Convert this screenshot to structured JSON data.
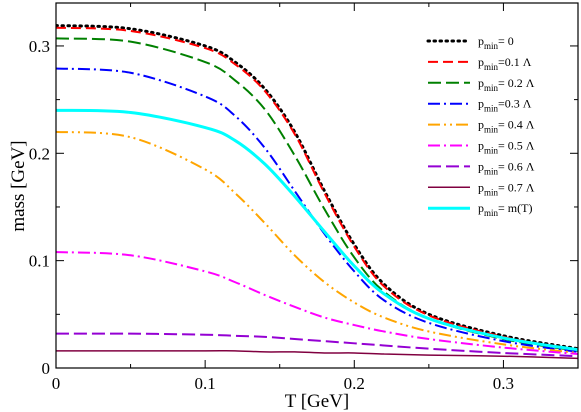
{
  "chart_data": {
    "type": "line",
    "xlabel": "T [GeV]",
    "ylabel": "mass [GeV]",
    "xlim": [
      0,
      0.35
    ],
    "ylim": [
      0,
      0.34
    ],
    "x_ticks": [
      "0",
      "0.1",
      "0.2",
      "0.3"
    ],
    "x_tick_values": [
      0,
      0.1,
      0.2,
      0.3
    ],
    "y_ticks": [
      "0",
      "0.1",
      "0.2",
      "0.3"
    ],
    "y_tick_values": [
      0,
      0.1,
      0.2,
      0.3
    ],
    "grid": false,
    "legend_position": "top-right",
    "x": [
      0.0,
      0.05,
      0.1,
      0.12,
      0.14,
      0.16,
      0.18,
      0.2,
      0.22,
      0.25,
      0.3,
      0.35
    ],
    "series": [
      {
        "name": "p_min = 0",
        "name_base": "p",
        "name_sub": "min",
        "name_rest": "= 0",
        "color": "#000000",
        "dash": "1.5,4.5",
        "width": 3,
        "values": [
          0.319,
          0.316,
          0.3,
          0.285,
          0.26,
          0.22,
          0.165,
          0.115,
          0.078,
          0.05,
          0.03,
          0.018
        ]
      },
      {
        "name": "p_min =0.1 Λ",
        "name_base": "p",
        "name_sub": "min",
        "name_rest": "=0.1 Λ",
        "color": "#ff0000",
        "dash": "10,5",
        "width": 2,
        "values": [
          0.317,
          0.314,
          0.298,
          0.283,
          0.258,
          0.218,
          0.163,
          0.113,
          0.076,
          0.049,
          0.029,
          0.017
        ]
      },
      {
        "name": "p_min = 0.2 Λ",
        "name_base": "p",
        "name_sub": "min",
        "name_rest": "= 0.2 Λ",
        "color": "#008000",
        "dash": "13,5",
        "width": 2,
        "values": [
          0.307,
          0.304,
          0.285,
          0.268,
          0.241,
          0.198,
          0.148,
          0.103,
          0.071,
          0.046,
          0.027,
          0.016
        ]
      },
      {
        "name": "p_min =0.3 Λ",
        "name_base": "p",
        "name_sub": "min",
        "name_rest": "=0.3 Λ",
        "color": "#0000ff",
        "dash": "12,4,2,4",
        "width": 2,
        "values": [
          0.279,
          0.275,
          0.253,
          0.235,
          0.205,
          0.165,
          0.125,
          0.09,
          0.063,
          0.042,
          0.025,
          0.015
        ]
      },
      {
        "name": "p_min = 0.4 Λ",
        "name_base": "p",
        "name_sub": "min",
        "name_rest": "= 0.4 Λ",
        "color": "#ffa500",
        "dash": "12,4,2,4,2,4",
        "width": 2,
        "values": [
          0.22,
          0.215,
          0.185,
          0.163,
          0.135,
          0.105,
          0.08,
          0.061,
          0.047,
          0.034,
          0.022,
          0.014
        ]
      },
      {
        "name": "p_min = 0.5 Λ",
        "name_base": "p",
        "name_sub": "min",
        "name_rest": "= 0.5 Λ",
        "color": "#ff00ff",
        "dash": "12,4,2,4",
        "width": 2,
        "values": [
          0.108,
          0.105,
          0.09,
          0.08,
          0.068,
          0.057,
          0.047,
          0.04,
          0.034,
          0.027,
          0.019,
          0.013
        ]
      },
      {
        "name": "p_min = 0.6 Λ",
        "name_base": "p",
        "name_sub": "min",
        "name_rest": "= 0.6 Λ",
        "color": "#9400d3",
        "dash": "13,5",
        "width": 2,
        "values": [
          0.032,
          0.032,
          0.031,
          0.03,
          0.029,
          0.027,
          0.025,
          0.023,
          0.021,
          0.018,
          0.014,
          0.011
        ]
      },
      {
        "name": "p_min = 0.7 Λ",
        "name_base": "p",
        "name_sub": "min",
        "name_rest": "= 0.7 Λ",
        "color": "#800040",
        "dash": "",
        "width": 1.5,
        "values": [
          0.016,
          0.016,
          0.016,
          0.016,
          0.015,
          0.015,
          0.014,
          0.014,
          0.013,
          0.012,
          0.011,
          0.009
        ]
      },
      {
        "name": "p_min = m(T)",
        "name_base": "p",
        "name_sub": "min",
        "name_rest": "= m(T)",
        "color": "#00ffff",
        "dash": "",
        "width": 3,
        "values": [
          0.24,
          0.238,
          0.224,
          0.212,
          0.19,
          0.16,
          0.127,
          0.095,
          0.069,
          0.046,
          0.028,
          0.017
        ]
      }
    ]
  }
}
